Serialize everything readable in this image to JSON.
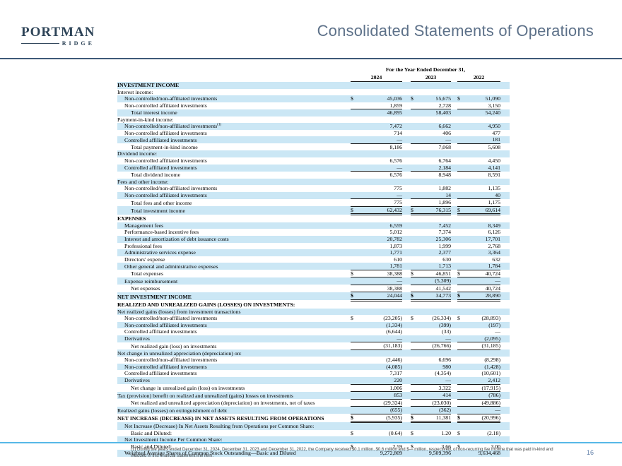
{
  "colors": {
    "band": "#cbe7f5",
    "navy": "#2e4458",
    "title": "#5d7189",
    "top_rule": "#3e5a78",
    "bottom_rule": "#56b8e7",
    "page_number": "#5f7ea8"
  },
  "logo": {
    "name": "PORTMAN",
    "sub": "RIDGE"
  },
  "header": {
    "title": "Consolidated Statements of Operations"
  },
  "footer": {
    "footnote": "(1) During the years ended December 31, 2024, December 31, 2023 and December 31, 2022, the Company received $0.1 million, $0.6 million and $— million, respectively, of non-recurring fee income that was paid in-kind and included in this financial statement line item.",
    "page_number": "16"
  },
  "table": {
    "period_header": "For the Year Ended December 31,",
    "years": [
      "2024",
      "2023",
      "2022"
    ],
    "rows": [
      {
        "label": "INVESTMENT INCOME",
        "indent": 0,
        "bold": true,
        "values": [
          "",
          "",
          ""
        ]
      },
      {
        "label": "Interest income:",
        "indent": 0,
        "values": [
          "",
          "",
          ""
        ]
      },
      {
        "label": "Non-controlled/non-affiliated investments",
        "indent": 1,
        "dollar": true,
        "values": [
          "45,036",
          "55,675",
          "51,090"
        ]
      },
      {
        "label": "Non-controlled affiliated investments",
        "indent": 1,
        "underline": "single",
        "values": [
          "1,859",
          "2,728",
          "3,150"
        ]
      },
      {
        "label": "Total interest income",
        "indent": 2,
        "values": [
          "46,895",
          "58,403",
          "54,240"
        ]
      },
      {
        "label": "Payment-in-kind income:",
        "indent": 0,
        "values": [
          "",
          "",
          ""
        ]
      },
      {
        "label": "Non-controlled/non-affiliated investments",
        "sup": "(1)",
        "indent": 1,
        "values": [
          "7,472",
          "6,662",
          "4,950"
        ]
      },
      {
        "label": "Non-controlled affiliated investments",
        "indent": 1,
        "values": [
          "714",
          "406",
          "477"
        ]
      },
      {
        "label": "Controlled affiliated investments",
        "indent": 1,
        "underline": "single",
        "values": [
          "—",
          "—",
          "181"
        ]
      },
      {
        "label": "Total payment-in-kind income",
        "indent": 2,
        "values": [
          "8,186",
          "7,068",
          "5,608"
        ]
      },
      {
        "label": "Dividend income:",
        "indent": 0,
        "values": [
          "",
          "",
          ""
        ]
      },
      {
        "label": "Non-controlled affiliated investments",
        "indent": 1,
        "values": [
          "6,576",
          "6,764",
          "4,450"
        ]
      },
      {
        "label": "Controlled affiliated investments",
        "indent": 1,
        "underline": "single",
        "values": [
          "—",
          "2,184",
          "4,141"
        ]
      },
      {
        "label": "Total dividend income",
        "indent": 2,
        "values": [
          "6,576",
          "8,948",
          "8,591"
        ]
      },
      {
        "label": "Fees and other income:",
        "indent": 0,
        "values": [
          "",
          "",
          ""
        ]
      },
      {
        "label": "Non-controlled/non-affiliated investments",
        "indent": 1,
        "values": [
          "775",
          "1,882",
          "1,135"
        ]
      },
      {
        "label": "Non-controlled affiliated investments",
        "indent": 1,
        "underline": "single",
        "values": [
          "—",
          "14",
          "40"
        ]
      },
      {
        "label": "Total fees and other income",
        "indent": 2,
        "underline": "single",
        "values": [
          "775",
          "1,896",
          "1,175"
        ]
      },
      {
        "label": "Total investment income",
        "indent": 2,
        "dollar": true,
        "underline": "double",
        "values": [
          "62,432",
          "76,315",
          "69,614"
        ]
      },
      {
        "label": "EXPENSES",
        "indent": 0,
        "bold": true,
        "values": [
          "",
          "",
          ""
        ]
      },
      {
        "label": "Management fees",
        "indent": 1,
        "values": [
          "6,559",
          "7,452",
          "8,349"
        ]
      },
      {
        "label": "Performance-based incentive fees",
        "indent": 1,
        "values": [
          "5,012",
          "7,374",
          "6,126"
        ]
      },
      {
        "label": "Interest and amortization of debt issuance costs",
        "indent": 1,
        "values": [
          "20,782",
          "25,306",
          "17,701"
        ]
      },
      {
        "label": "Professional fees",
        "indent": 1,
        "values": [
          "1,873",
          "1,999",
          "2,768"
        ]
      },
      {
        "label": "Administrative services expense",
        "indent": 1,
        "values": [
          "1,771",
          "2,377",
          "3,364"
        ]
      },
      {
        "label": "Directors' expense",
        "indent": 1,
        "values": [
          "610",
          "630",
          "632"
        ]
      },
      {
        "label": "Other general and administrative expenses",
        "indent": 1,
        "underline": "single",
        "values": [
          "1,781",
          "1,713",
          "1,784"
        ]
      },
      {
        "label": "Total expenses",
        "indent": 2,
        "dollar": true,
        "underline": "single",
        "values": [
          "38,388",
          "46,851",
          "40,724"
        ]
      },
      {
        "label": "Expense reimbursement",
        "indent": 1,
        "underline": "single",
        "values": [
          "—",
          "(5,309)",
          "—"
        ]
      },
      {
        "label": "Net expenses",
        "indent": 2,
        "underline": "single",
        "values": [
          "38,388",
          "41,542",
          "40,724"
        ]
      },
      {
        "label": "NET INVESTMENT INCOME",
        "indent": 0,
        "bold": true,
        "dollar": true,
        "underline": "double",
        "values": [
          "24,044",
          "34,773",
          "28,890"
        ]
      },
      {
        "label": "REALIZED AND UNREALIZED GAINS (LOSSES) ON INVESTMENTS:",
        "indent": 0,
        "bold": true,
        "values": [
          "",
          "",
          ""
        ]
      },
      {
        "label": "Net realized gains (losses) from investment transactions",
        "indent": 0,
        "values": [
          "",
          "",
          ""
        ]
      },
      {
        "label": "Non-controlled/non-affiliated investments",
        "indent": 1,
        "dollar": true,
        "values": [
          "(23,205)",
          "(26,334)",
          "(28,893)"
        ]
      },
      {
        "label": "Non-controlled affiliated investments",
        "indent": 1,
        "values": [
          "(1,334)",
          "(399)",
          "(197)"
        ]
      },
      {
        "label": "Controlled affiliated investments",
        "indent": 1,
        "values": [
          "(6,644)",
          "(33)",
          "—"
        ]
      },
      {
        "label": "Derivatives",
        "indent": 1,
        "underline": "single",
        "values": [
          "—",
          "—",
          "(2,095)"
        ]
      },
      {
        "label": "Net realized gain (loss) on investments",
        "indent": 2,
        "underline": "single",
        "values": [
          "(31,183)",
          "(26,766)",
          "(31,185)"
        ]
      },
      {
        "label": "Net change in unrealized appreciation (depreciation) on:",
        "indent": 0,
        "values": [
          "",
          "",
          ""
        ]
      },
      {
        "label": "Non-controlled/non-affiliated investments",
        "indent": 1,
        "values": [
          "(2,446)",
          "6,696",
          "(8,298)"
        ]
      },
      {
        "label": "Non-controlled affiliated investments",
        "indent": 1,
        "values": [
          "(4,085)",
          "980",
          "(1,428)"
        ]
      },
      {
        "label": "Controlled affiliated investments",
        "indent": 1,
        "values": [
          "7,317",
          "(4,354)",
          "(10,601)"
        ]
      },
      {
        "label": "Derivatives",
        "indent": 1,
        "underline": "single",
        "values": [
          "220",
          "—",
          "2,412"
        ]
      },
      {
        "label": "Net change in unrealized gain (loss) on investments",
        "indent": 2,
        "underline": "single",
        "values": [
          "1,006",
          "3,322",
          "(17,915)"
        ]
      },
      {
        "label": "Tax (provision) benefit on realized and unrealized (gains) losses on investments",
        "indent": 0,
        "underline": "single",
        "values": [
          "853",
          "414",
          "(786)"
        ]
      },
      {
        "label": "Net realized and unrealized appreciation (depreciation) on investments, net of taxes",
        "indent": 2,
        "underline": "single",
        "values": [
          "(29,324)",
          "(23,030)",
          "(49,886)"
        ]
      },
      {
        "label": "Realized gains (losses) on extinguishment of debt",
        "indent": 0,
        "underline": "single",
        "values": [
          "(655)",
          "(362)",
          "—"
        ]
      },
      {
        "label": "NET INCREASE (DECREASE) IN NET ASSETS RESULTING FROM OPERATIONS",
        "indent": 0,
        "bold": true,
        "dollar": true,
        "underline": "double",
        "values": [
          "(5,935)",
          "11,381",
          "(20,996)"
        ]
      },
      {
        "label": "Net Increase (Decrease) In Net Assets Resulting from Operations per Common Share:",
        "indent": 1,
        "values": [
          "",
          "",
          ""
        ]
      },
      {
        "label": "Basic and Diluted:",
        "indent": 2,
        "dollar": true,
        "values": [
          "(0.64)",
          "1.20",
          "(2.18)"
        ]
      },
      {
        "label": "Net Investment Income Per Common Share:",
        "indent": 1,
        "values": [
          "",
          "",
          ""
        ]
      },
      {
        "label": "Basic and Diluted:",
        "indent": 2,
        "dollar": true,
        "values": [
          "2.59",
          "3.66",
          "3.00"
        ]
      },
      {
        "label": "Weighted Average Shares of Common Stock Outstanding—Basic and Diluted",
        "indent": 1,
        "values": [
          "9,272,809",
          "9,509,396",
          "9,634,468"
        ]
      }
    ]
  }
}
